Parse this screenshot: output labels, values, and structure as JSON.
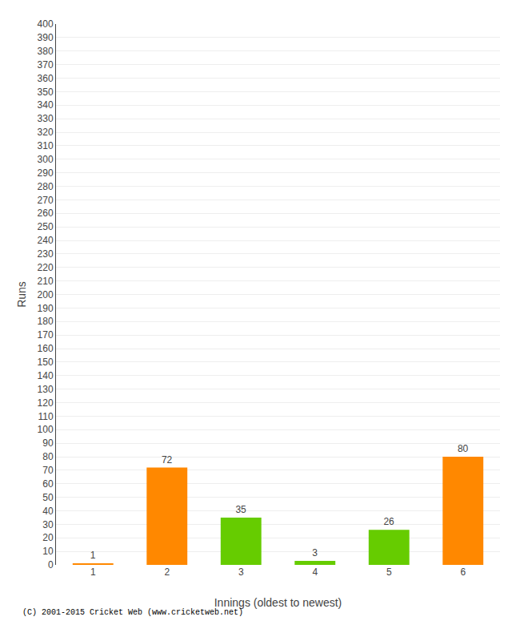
{
  "chart_data": {
    "type": "bar",
    "xlabel": "Innings (oldest to newest)",
    "ylabel": "Runs",
    "categories": [
      1,
      2,
      3,
      4,
      5,
      6
    ],
    "values": [
      1,
      72,
      35,
      3,
      26,
      80
    ],
    "colors": [
      "#ff8800",
      "#ff8800",
      "#66cc00",
      "#66cc00",
      "#66cc00",
      "#ff8800"
    ],
    "ylim": [
      0,
      400
    ],
    "yticks": [
      0,
      10,
      20,
      30,
      40,
      50,
      60,
      70,
      80,
      90,
      100,
      110,
      120,
      130,
      140,
      150,
      160,
      170,
      180,
      190,
      200,
      210,
      220,
      230,
      240,
      250,
      260,
      270,
      280,
      290,
      300,
      310,
      320,
      330,
      340,
      350,
      360,
      370,
      380,
      390,
      400
    ],
    "grid": true,
    "data_labels": true,
    "annotations": [
      "(C) 2001-2015 Cricket Web (www.cricketweb.net)"
    ]
  }
}
